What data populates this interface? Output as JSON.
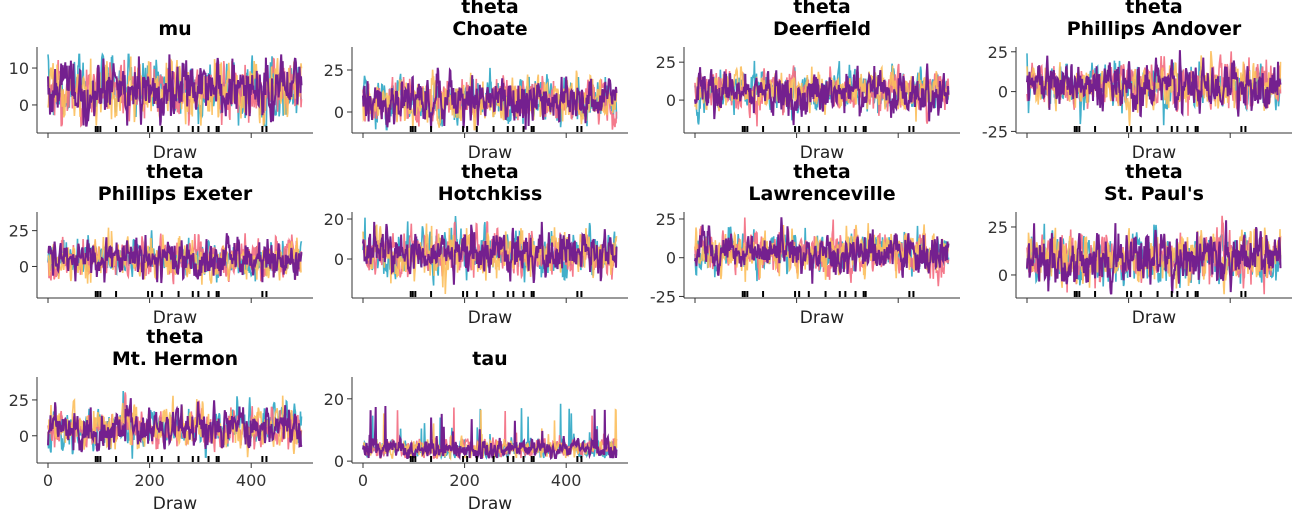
{
  "chart_data": [
    {
      "type": "line",
      "title": [
        "mu"
      ],
      "xlabel": "Draw",
      "ylim": [
        -7.6,
        15.7
      ],
      "yticks": [
        0,
        10
      ],
      "xticklabels": false
    },
    {
      "type": "line",
      "title": [
        "theta",
        "Choate"
      ],
      "xlabel": "Draw",
      "ylim": [
        -12.5,
        38.7
      ],
      "yticks": [
        0,
        25
      ],
      "xticklabels": false
    },
    {
      "type": "line",
      "title": [
        "theta",
        "Deerfield"
      ],
      "xlabel": "Draw",
      "ylim": [
        -21.7,
        35
      ],
      "yticks": [
        0,
        25
      ],
      "xticklabels": false
    },
    {
      "type": "line",
      "title": [
        "theta",
        "Phillips Andover"
      ],
      "xlabel": "Draw",
      "ylim": [
        -26,
        28
      ],
      "yticks": [
        -25,
        0,
        25
      ],
      "xticklabels": false
    },
    {
      "type": "line",
      "title": [
        "theta",
        "Phillips Exeter"
      ],
      "xlabel": "Draw",
      "ylim": [
        -22,
        38
      ],
      "yticks": [
        0,
        25
      ],
      "xticklabels": false
    },
    {
      "type": "line",
      "title": [
        "theta",
        "Hotchkiss"
      ],
      "xlabel": "Draw",
      "ylim": [
        -19.5,
        23.5
      ],
      "yticks": [
        0,
        20
      ],
      "xticklabels": false
    },
    {
      "type": "line",
      "title": [
        "theta",
        "Lawrenceville"
      ],
      "xlabel": "Draw",
      "ylim": [
        -26,
        29.5
      ],
      "yticks": [
        -25,
        0,
        25
      ],
      "xticklabels": false
    },
    {
      "type": "line",
      "title": [
        "theta",
        "St. Paul's"
      ],
      "xlabel": "Draw",
      "ylim": [
        -12,
        32.8
      ],
      "yticks": [
        0,
        25
      ],
      "xticklabels": false
    },
    {
      "type": "line",
      "title": [
        "theta",
        "Mt. Hermon"
      ],
      "xlabel": "Draw",
      "ylim": [
        -19,
        41
      ],
      "yticks": [
        0,
        25
      ],
      "xticklabels": true
    },
    {
      "type": "line",
      "title": [
        "tau"
      ],
      "xlabel": "Draw",
      "ylim": [
        -0.6,
        27
      ],
      "yticks": [
        0,
        20
      ],
      "xticklabels": true
    }
  ],
  "shared": {
    "xlim": [
      0,
      500
    ],
    "xticks": [
      0,
      200,
      400
    ],
    "draws": 500,
    "chains": 4,
    "chain_colors": [
      "#2ca6c4",
      "#f36b7f",
      "#fcbf5c",
      "#74208f"
    ],
    "divergences": [
      94,
      98,
      103,
      134,
      197,
      205,
      224,
      257,
      285,
      296,
      316,
      332,
      336,
      422,
      430
    ],
    "divergence_color": "#000000"
  }
}
